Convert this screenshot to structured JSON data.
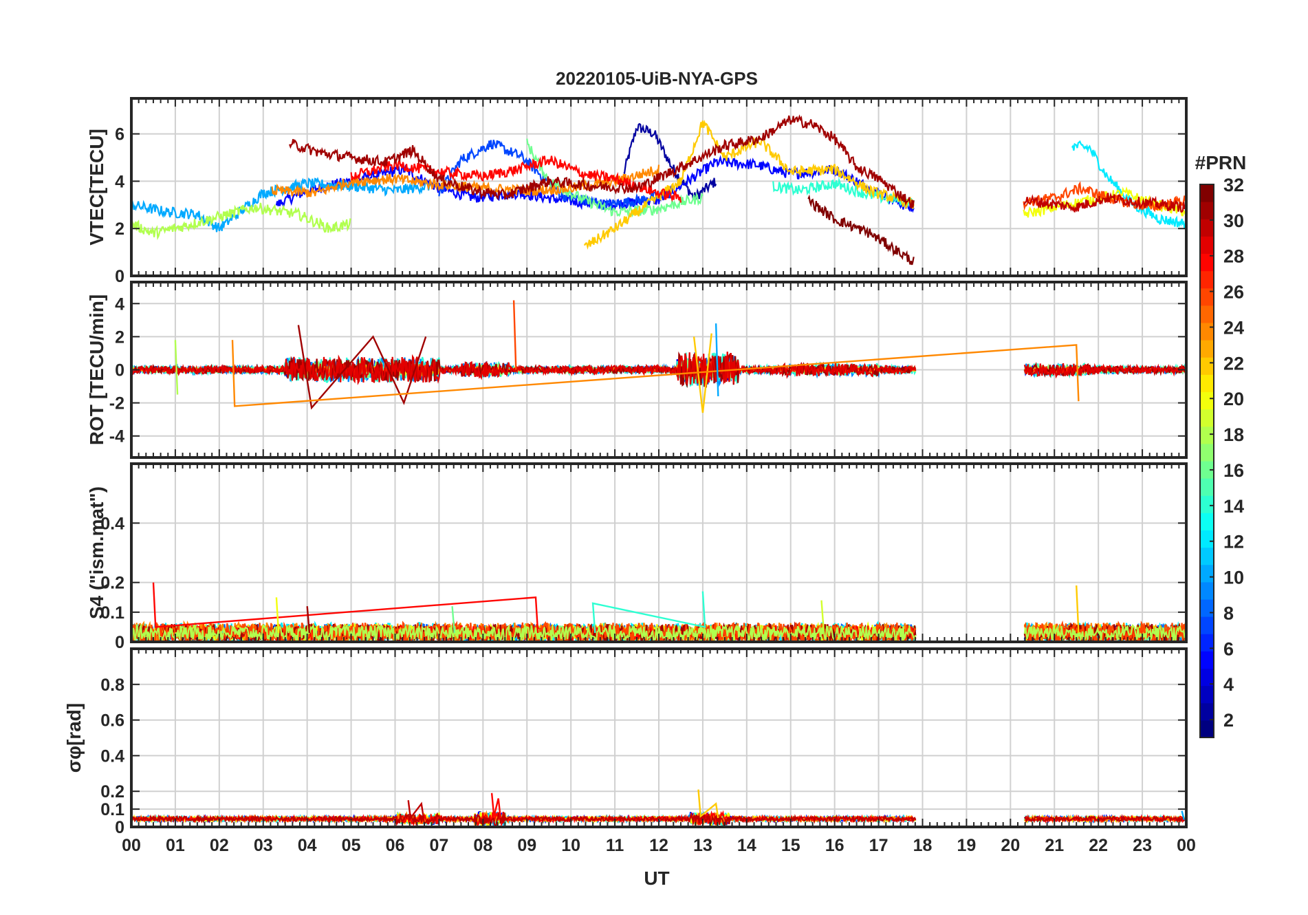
{
  "figure": {
    "title": "20220105-UiB-NYA-GPS",
    "xlabel": "UT",
    "x_tick_labels": [
      "00",
      "01",
      "02",
      "03",
      "04",
      "05",
      "06",
      "07",
      "08",
      "09",
      "10",
      "11",
      "12",
      "13",
      "14",
      "15",
      "16",
      "17",
      "18",
      "19",
      "20",
      "21",
      "22",
      "23",
      "00"
    ],
    "colorbar": {
      "title": "#PRN",
      "range": [
        1,
        32
      ],
      "tick_labels": [
        "2",
        "4",
        "6",
        "8",
        "10",
        "12",
        "14",
        "16",
        "18",
        "20",
        "22",
        "24",
        "26",
        "28",
        "30",
        "32"
      ],
      "colormap": "jet",
      "colors": [
        "#00008f",
        "#0000ff",
        "#0080ff",
        "#00ffff",
        "#80ff80",
        "#ffff00",
        "#ff8000",
        "#ff0000",
        "#800000"
      ]
    }
  },
  "chart_data": [
    {
      "type": "line",
      "panel": "VTEC",
      "ylabel": "VTEC[TECU]",
      "xlim": [
        0,
        24
      ],
      "ylim": [
        0,
        7.5
      ],
      "y_ticks": [
        0,
        2,
        4,
        6
      ],
      "y_tick_labels": [
        "0",
        "2",
        "4",
        "6"
      ],
      "grid": true,
      "data_gap_hours": [
        17.85,
        20.3
      ],
      "series": [
        {
          "prn": 2,
          "points": [
            [
              11.2,
              4.3
            ],
            [
              11.5,
              6.3
            ],
            [
              11.9,
              6.0
            ],
            [
              12.3,
              4.6
            ],
            [
              12.8,
              3.3
            ],
            [
              13.3,
              4.0
            ]
          ]
        },
        {
          "prn": 5,
          "points": [
            [
              3.3,
              3.0
            ],
            [
              4.0,
              3.6
            ],
            [
              5.2,
              4.1
            ],
            [
              6.2,
              4.5
            ],
            [
              7.0,
              3.7
            ],
            [
              7.8,
              3.3
            ],
            [
              8.8,
              3.5
            ],
            [
              9.8,
              3.2
            ],
            [
              10.8,
              3.0
            ],
            [
              12.0,
              3.2
            ],
            [
              13.3,
              4.8
            ],
            [
              14.2,
              4.7
            ],
            [
              15.0,
              4.3
            ],
            [
              16.0,
              4.5
            ],
            [
              17.0,
              3.5
            ],
            [
              17.8,
              2.8
            ]
          ]
        },
        {
          "prn": 7,
          "points": [
            [
              7.0,
              3.5
            ],
            [
              7.5,
              4.9
            ],
            [
              8.2,
              5.6
            ],
            [
              8.9,
              5.0
            ],
            [
              9.8,
              3.4
            ],
            [
              10.8,
              3.0
            ],
            [
              11.6,
              3.2
            ],
            [
              12.3,
              3.5
            ]
          ]
        },
        {
          "prn": 10,
          "points": [
            [
              0.0,
              3.0
            ],
            [
              0.8,
              2.7
            ],
            [
              1.5,
              2.6
            ],
            [
              2.0,
              2.0
            ],
            [
              3.0,
              3.5
            ],
            [
              4.0,
              3.9
            ],
            [
              5.0,
              3.8
            ],
            [
              6.0,
              3.6
            ],
            [
              6.8,
              3.8
            ]
          ]
        },
        {
          "prn": 12,
          "points": [
            [
              21.4,
              5.5
            ],
            [
              21.8,
              5.4
            ],
            [
              22.2,
              4.2
            ],
            [
              22.8,
              3.0
            ],
            [
              23.4,
              2.4
            ],
            [
              24.0,
              2.2
            ]
          ]
        },
        {
          "prn": 14,
          "points": [
            [
              14.6,
              3.8
            ],
            [
              15.2,
              3.6
            ],
            [
              16.0,
              3.9
            ],
            [
              16.8,
              3.4
            ],
            [
              17.8,
              3.1
            ]
          ]
        },
        {
          "prn": 16,
          "points": [
            [
              9.0,
              5.6
            ],
            [
              9.5,
              4.0
            ],
            [
              10.3,
              3.2
            ],
            [
              11.0,
              2.7
            ],
            [
              11.9,
              2.8
            ],
            [
              12.5,
              3.1
            ],
            [
              13.0,
              3.3
            ]
          ]
        },
        {
          "prn": 18,
          "points": [
            [
              0.0,
              2.2
            ],
            [
              0.5,
              1.8
            ],
            [
              1.2,
              2.1
            ],
            [
              2.0,
              2.5
            ],
            [
              2.8,
              2.9
            ],
            [
              3.8,
              2.6
            ],
            [
              4.5,
              2.0
            ],
            [
              5.0,
              2.2
            ]
          ]
        },
        {
          "prn": 20,
          "points": [
            [
              20.3,
              2.6
            ],
            [
              21.0,
              2.9
            ],
            [
              21.8,
              3.2
            ],
            [
              22.6,
              3.5
            ],
            [
              23.3,
              3.0
            ],
            [
              24.0,
              2.7
            ]
          ]
        },
        {
          "prn": 22,
          "points": [
            [
              10.3,
              1.2
            ],
            [
              11.0,
              2.0
            ],
            [
              11.8,
              3.1
            ],
            [
              12.5,
              4.0
            ],
            [
              13.0,
              6.5
            ],
            [
              13.5,
              5.0
            ],
            [
              14.3,
              5.7
            ],
            [
              15.0,
              4.4
            ],
            [
              16.0,
              4.5
            ],
            [
              16.8,
              3.6
            ],
            [
              17.8,
              3.0
            ]
          ]
        },
        {
          "prn": 24,
          "points": [
            [
              3.2,
              3.6
            ],
            [
              4.2,
              3.5
            ],
            [
              5.0,
              4.0
            ],
            [
              6.0,
              4.1
            ],
            [
              6.8,
              3.9
            ],
            [
              8.0,
              3.7
            ],
            [
              9.0,
              3.6
            ],
            [
              10.0,
              3.7
            ],
            [
              11.0,
              4.0
            ],
            [
              12.0,
              4.5
            ]
          ]
        },
        {
          "prn": 26,
          "points": [
            [
              20.3,
              3.1
            ],
            [
              21.0,
              3.3
            ],
            [
              21.6,
              3.7
            ],
            [
              22.4,
              3.2
            ],
            [
              23.2,
              2.9
            ],
            [
              24.0,
              3.2
            ]
          ]
        },
        {
          "prn": 28,
          "points": [
            [
              5.0,
              4.2
            ],
            [
              6.0,
              4.7
            ],
            [
              7.0,
              4.4
            ],
            [
              8.0,
              4.2
            ],
            [
              8.8,
              4.5
            ],
            [
              9.5,
              4.9
            ],
            [
              10.3,
              4.3
            ],
            [
              11.0,
              4.1
            ],
            [
              12.0,
              3.5
            ],
            [
              12.5,
              3.3
            ]
          ]
        },
        {
          "prn": 30,
          "points": [
            [
              20.3,
              3.2
            ],
            [
              20.7,
              3.1
            ],
            [
              21.5,
              2.9
            ],
            [
              22.2,
              3.3
            ],
            [
              23.0,
              3.1
            ],
            [
              24.0,
              2.9
            ]
          ]
        },
        {
          "prn": 31,
          "points": [
            [
              3.6,
              5.6
            ],
            [
              4.3,
              5.2
            ],
            [
              5.0,
              5.0
            ],
            [
              5.8,
              4.8
            ],
            [
              6.4,
              5.3
            ],
            [
              7.0,
              4.1
            ],
            [
              7.8,
              3.6
            ],
            [
              8.5,
              3.4
            ],
            [
              9.5,
              4.0
            ],
            [
              10.5,
              3.8
            ],
            [
              11.5,
              3.7
            ],
            [
              12.5,
              4.6
            ],
            [
              13.5,
              5.5
            ],
            [
              14.3,
              5.8
            ],
            [
              15.0,
              6.6
            ],
            [
              15.5,
              6.4
            ],
            [
              16.0,
              5.8
            ],
            [
              16.5,
              4.6
            ],
            [
              17.0,
              4.1
            ],
            [
              17.8,
              3.0
            ]
          ]
        },
        {
          "prn": 32,
          "points": [
            [
              15.4,
              3.2
            ],
            [
              16.0,
              2.4
            ],
            [
              16.8,
              1.8
            ],
            [
              17.3,
              1.2
            ],
            [
              17.8,
              0.6
            ]
          ]
        }
      ]
    },
    {
      "type": "line",
      "panel": "ROT",
      "ylabel": "ROT [TECU/min]",
      "xlim": [
        0,
        24
      ],
      "ylim": [
        -5.3,
        5.3
      ],
      "y_ticks": [
        -4,
        -2,
        0,
        2,
        4
      ],
      "y_tick_labels": [
        "-4",
        "-2",
        "0",
        "2",
        "4"
      ],
      "grid": true,
      "data_gap_hours": [
        17.85,
        20.3
      ],
      "series": [
        {
          "prn": 31,
          "points": [
            [
              3.8,
              2.7
            ],
            [
              4.1,
              -2.3
            ],
            [
              5.5,
              2.0
            ],
            [
              6.2,
              -2.0
            ],
            [
              6.7,
              2.0
            ]
          ]
        },
        {
          "prn": 26,
          "points": [
            [
              8.7,
              4.2
            ],
            [
              8.75,
              0.0
            ]
          ]
        },
        {
          "prn": 22,
          "points": [
            [
              12.8,
              2.0
            ],
            [
              13.0,
              -2.6
            ],
            [
              13.2,
              2.2
            ]
          ]
        },
        {
          "prn": 24,
          "points": [
            [
              2.3,
              1.8
            ],
            [
              2.35,
              -2.2
            ],
            [
              21.5,
              1.5
            ],
            [
              21.55,
              -1.9
            ]
          ]
        },
        {
          "prn": 18,
          "points": [
            [
              1.0,
              1.8
            ],
            [
              1.05,
              -1.5
            ]
          ]
        },
        {
          "prn": 10,
          "points": [
            [
              13.3,
              2.8
            ],
            [
              13.35,
              -1.6
            ]
          ]
        }
      ]
    },
    {
      "type": "line",
      "panel": "S4",
      "ylabel": "S4 (\"ism.mat\")",
      "xlim": [
        0,
        24
      ],
      "ylim": [
        0,
        0.6
      ],
      "y_ticks": [
        0,
        0.1,
        0.2,
        0.4
      ],
      "y_tick_labels": [
        "0",
        "0.1",
        "0.2",
        "0.4"
      ],
      "grid": true,
      "data_gap_hours": [
        17.85,
        20.3
      ],
      "series": [
        {
          "prn": 28,
          "points": [
            [
              0.5,
              0.2
            ],
            [
              0.55,
              0.05
            ],
            [
              9.2,
              0.15
            ],
            [
              9.25,
              0.03
            ]
          ]
        },
        {
          "prn": 22,
          "points": [
            [
              21.5,
              0.19
            ],
            [
              21.55,
              0.03
            ]
          ]
        },
        {
          "prn": 20,
          "points": [
            [
              3.3,
              0.15
            ],
            [
              3.35,
              0.03
            ]
          ]
        },
        {
          "prn": 14,
          "points": [
            [
              13.0,
              0.17
            ],
            [
              13.05,
              0.05
            ],
            [
              10.5,
              0.13
            ],
            [
              10.55,
              0.03
            ]
          ]
        },
        {
          "prn": 19,
          "points": [
            [
              15.7,
              0.14
            ],
            [
              15.75,
              0.04
            ]
          ]
        },
        {
          "prn": 31,
          "points": [
            [
              4.0,
              0.12
            ],
            [
              4.05,
              0.03
            ]
          ]
        },
        {
          "prn": 16,
          "points": [
            [
              7.3,
              0.12
            ],
            [
              7.35,
              0.03
            ]
          ]
        }
      ]
    },
    {
      "type": "line",
      "panel": "sigma_phi",
      "ylabel": "σφ[rad]",
      "xlim": [
        0,
        24
      ],
      "ylim": [
        0,
        1.0
      ],
      "y_ticks": [
        0,
        0.1,
        0.2,
        0.4,
        0.6,
        0.8
      ],
      "y_tick_labels": [
        "0",
        "0.1",
        "0.2",
        "0.4",
        "0.6",
        "0.8"
      ],
      "grid": true,
      "data_gap_hours": [
        17.85,
        20.3
      ],
      "series": [
        {
          "prn": 30,
          "points": [
            [
              6.3,
              0.15
            ],
            [
              6.35,
              0.05
            ],
            [
              6.6,
              0.13
            ],
            [
              6.65,
              0.05
            ]
          ]
        },
        {
          "prn": 28,
          "points": [
            [
              8.2,
              0.19
            ],
            [
              8.25,
              0.06
            ],
            [
              8.35,
              0.16
            ],
            [
              8.4,
              0.05
            ]
          ]
        },
        {
          "prn": 22,
          "points": [
            [
              12.9,
              0.21
            ],
            [
              12.95,
              0.06
            ],
            [
              13.3,
              0.13
            ],
            [
              13.35,
              0.05
            ]
          ]
        },
        {
          "prn": 10,
          "points": [
            [
              23.9,
              0.09
            ],
            [
              23.95,
              0.04
            ]
          ]
        }
      ]
    }
  ]
}
